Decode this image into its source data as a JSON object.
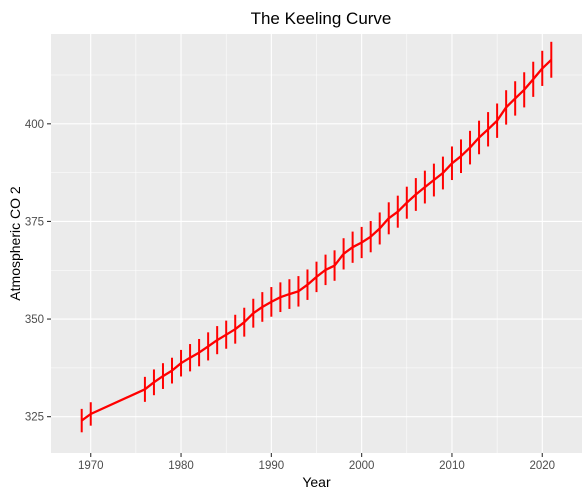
{
  "chart_data": {
    "type": "line",
    "title": "The Keeling Curve",
    "xlabel": "Year",
    "ylabel": "Atmospheric CO 2",
    "xlim": [
      1965.6,
      2024.4
    ],
    "ylim": [
      315.7,
      423.0
    ],
    "x_ticks": [
      1970,
      1980,
      1990,
      2000,
      2010,
      2020
    ],
    "y_ticks": [
      325,
      350,
      375,
      400
    ],
    "grid": true,
    "line_color": "#ff0000",
    "panel_color": "#ebebeb",
    "series": [
      {
        "x": [
          1969,
          1970,
          1976,
          1977,
          1978,
          1979,
          1980,
          1981,
          1982,
          1983,
          1984,
          1985,
          1986,
          1987,
          1988,
          1989,
          1990,
          1991,
          1992,
          1993,
          1994,
          1995,
          1996,
          1997,
          1998,
          1999,
          2000,
          2001,
          2002,
          2003,
          2004,
          2005,
          2006,
          2007,
          2008,
          2009,
          2010,
          2011,
          2012,
          2013,
          2014,
          2015,
          2016,
          2017,
          2018,
          2019,
          2020,
          2021
        ],
        "values": [
          324.0,
          325.7,
          332.0,
          333.8,
          335.4,
          336.8,
          338.7,
          340.1,
          341.4,
          343.0,
          344.6,
          346.0,
          347.4,
          349.2,
          351.5,
          353.1,
          354.4,
          355.6,
          356.4,
          357.1,
          358.8,
          360.8,
          362.6,
          363.7,
          366.7,
          368.4,
          369.6,
          371.1,
          373.2,
          375.8,
          377.5,
          379.8,
          381.9,
          383.8,
          385.6,
          387.4,
          389.9,
          391.7,
          393.9,
          396.5,
          398.6,
          400.8,
          404.2,
          406.5,
          408.7,
          411.4,
          414.2,
          416.4
        ],
        "seasonal_amplitude": [
          3.0,
          3.0,
          3.2,
          3.3,
          3.3,
          3.3,
          3.4,
          3.5,
          3.5,
          3.6,
          3.6,
          3.6,
          3.7,
          3.7,
          3.7,
          3.8,
          3.8,
          3.8,
          3.8,
          3.9,
          3.9,
          3.9,
          3.9,
          3.9,
          4.0,
          4.0,
          4.0,
          4.0,
          4.1,
          4.1,
          4.1,
          4.1,
          4.2,
          4.2,
          4.2,
          4.2,
          4.3,
          4.3,
          4.3,
          4.3,
          4.4,
          4.4,
          4.4,
          4.4,
          4.5,
          4.5,
          4.5,
          4.6
        ]
      }
    ]
  }
}
